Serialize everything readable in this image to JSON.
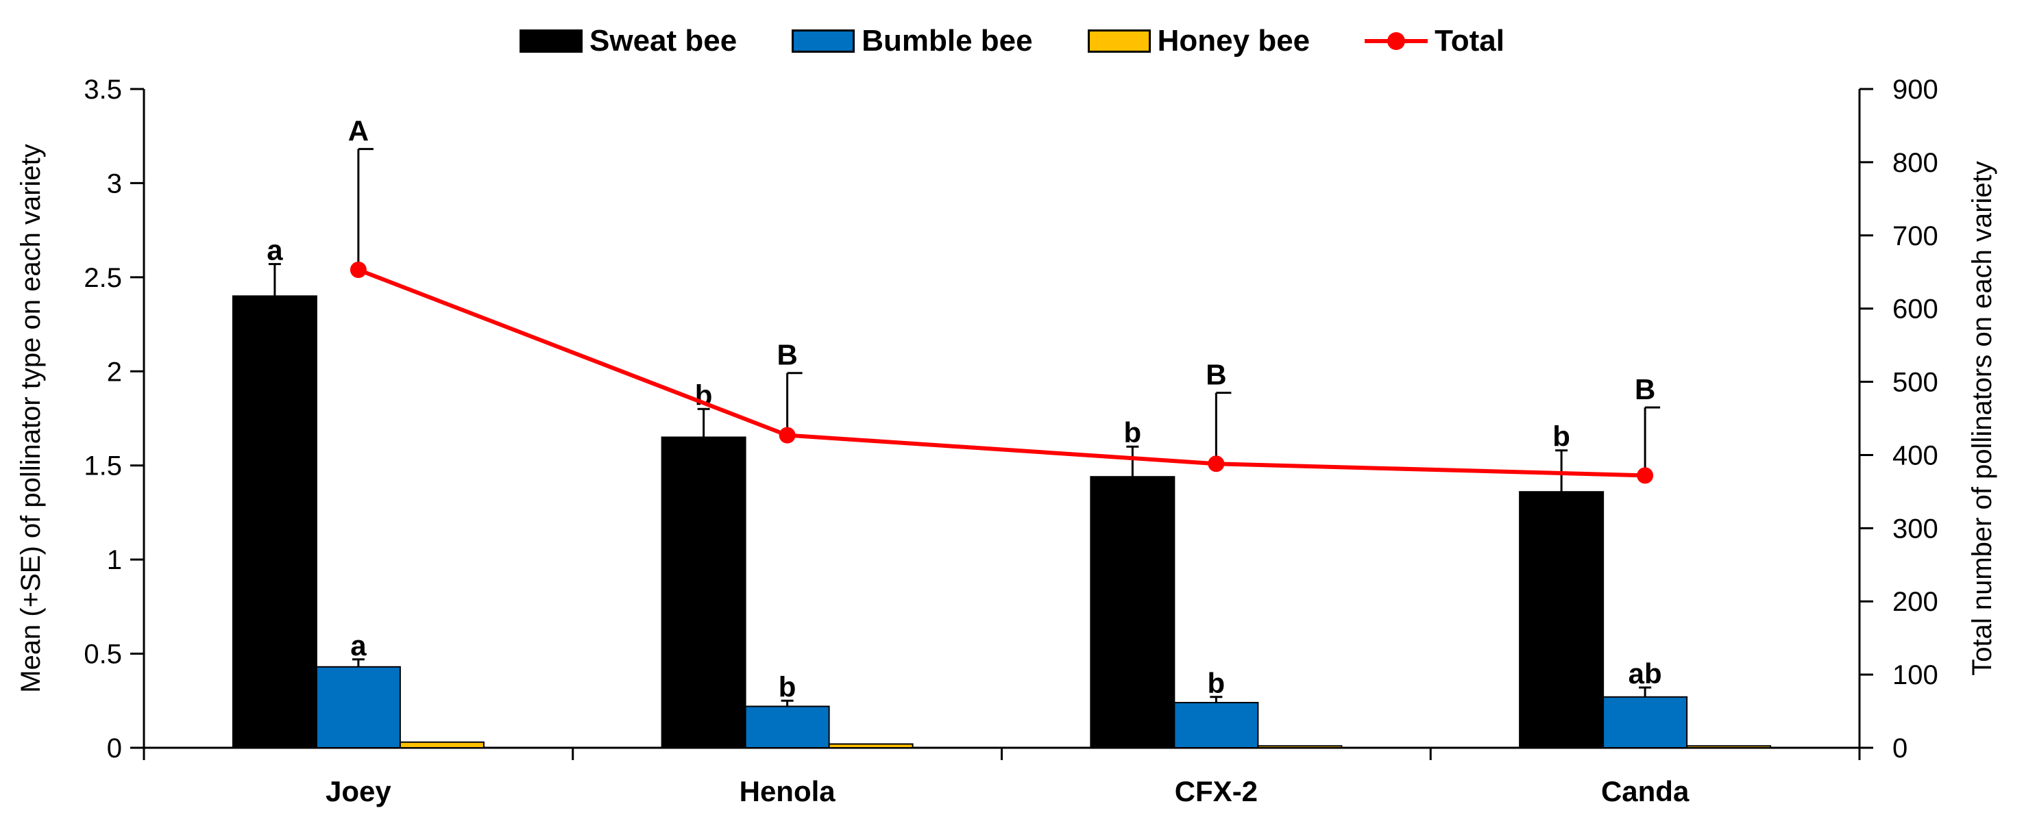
{
  "chart_data": {
    "type": "bar",
    "categories": [
      "Joey",
      "Henola",
      "CFX-2",
      "Canda"
    ],
    "ylabel_left": "Mean (+SE) of pollinator type on each variety",
    "ylabel_right": "Total number of pollinators on each variety",
    "ylim_left": [
      0,
      3.5
    ],
    "ylim_right": [
      0,
      900
    ],
    "yticks_left": [
      "0",
      "0.5",
      "1",
      "1.5",
      "2",
      "2.5",
      "3",
      "3.5"
    ],
    "yticks_right": [
      "0",
      "100",
      "200",
      "300",
      "400",
      "500",
      "600",
      "700",
      "800",
      "900"
    ],
    "series": [
      {
        "name": "Sweat bee",
        "color": "#000000",
        "values": [
          2.4,
          1.65,
          1.44,
          1.36
        ],
        "se": [
          0.17,
          0.15,
          0.16,
          0.22
        ],
        "letters": [
          "a",
          "b",
          "b",
          "b"
        ]
      },
      {
        "name": "Bumble bee",
        "color": "#0070c0",
        "values": [
          0.43,
          0.22,
          0.24,
          0.27
        ],
        "se": [
          0.04,
          0.03,
          0.03,
          0.05
        ],
        "letters": [
          "a",
          "b",
          "b",
          "ab"
        ]
      },
      {
        "name": "Honey bee",
        "color": "#ffc000",
        "values": [
          0.03,
          0.02,
          0.01,
          0.01
        ],
        "se": [
          0,
          0,
          0,
          0
        ],
        "letters": [
          "",
          "",
          "",
          ""
        ]
      }
    ],
    "line": {
      "name": "Total",
      "color": "#ff0000",
      "values": [
        653,
        427,
        388,
        372
      ],
      "se": [
        165,
        85,
        97,
        93
      ],
      "letters": [
        "A",
        "B",
        "B",
        "B"
      ]
    }
  }
}
